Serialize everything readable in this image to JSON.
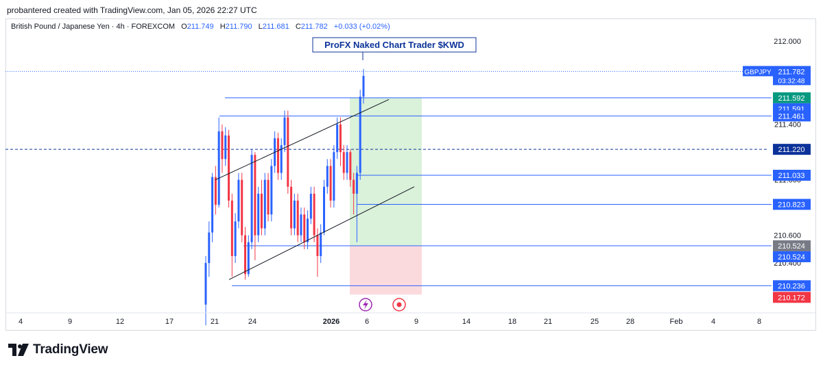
{
  "header": {
    "created_by": "probantered created with TradingView.com, Jan 05, 2026 22:27 UTC"
  },
  "legend": {
    "symbol": "British Pound / Japanese Yen · 4h · FOREXCOM",
    "o_label": "O",
    "o_value": "211.749",
    "h_label": "H",
    "h_value": "211.790",
    "l_label": "L",
    "l_value": "211.681",
    "c_label": "C",
    "c_value": "211.782",
    "change": "+0.033 (+0.02%)"
  },
  "annotation": "ProFX Naked Chart Trader $KWD",
  "brand": "TradingView",
  "colors": {
    "up": "#2962ff",
    "down": "#f23645",
    "line": "#2962ff",
    "profit_zone": "#d6f0d6",
    "loss_zone": "#fbd6da",
    "dark_badge": "#0c3299",
    "grey_badge": "#787b86",
    "green_badge": "#089981",
    "red_badge": "#f23645"
  },
  "chart_data": {
    "type": "candlestick",
    "symbol": "GBPJPY",
    "timeframe": "4h",
    "ylim": [
      210.05,
      212.1
    ],
    "y_ticks": [
      "212.000",
      "211.400",
      "211.000",
      "210.600",
      "210.400"
    ],
    "x_ticks": [
      "4",
      "9",
      "12",
      "17",
      "21",
      "24",
      "2026",
      "6",
      "9",
      "14",
      "18",
      "21",
      "25",
      "28",
      "Feb",
      "4",
      "8"
    ],
    "current_price": {
      "symbol": "GBPJPY",
      "price": "211.782",
      "countdown": "03:32:48"
    },
    "dashed_level": "211.220",
    "horizontal_levels": [
      "211.592",
      "211.591",
      "211.461",
      "211.033",
      "210.823",
      "210.524",
      "210.524",
      "210.236",
      "210.172"
    ],
    "position": {
      "entry": "210.524",
      "target": "211.592",
      "stop": "210.172"
    },
    "icons": [
      "lightning-icon",
      "target-icon"
    ],
    "channel": {
      "upper": [
        [
          211.0,
          211.58
        ]
      ],
      "lower": [
        [
          210.28,
          210.95
        ]
      ]
    },
    "candles": [
      [
        210.1,
        210.4,
        209.95,
        210.45
      ],
      [
        210.4,
        210.62,
        210.3,
        210.7
      ],
      [
        210.62,
        211.02,
        210.55,
        211.05
      ],
      [
        211.02,
        210.82,
        210.75,
        211.1
      ],
      [
        210.82,
        211.35,
        210.8,
        211.45
      ],
      [
        211.35,
        211.15,
        211.05,
        211.4
      ],
      [
        211.15,
        211.32,
        211.1,
        211.38
      ],
      [
        211.32,
        210.85,
        210.8,
        211.36
      ],
      [
        210.85,
        210.45,
        210.3,
        210.9
      ],
      [
        210.45,
        210.7,
        210.4,
        210.76
      ],
      [
        210.7,
        211.0,
        210.65,
        211.05
      ],
      [
        211.0,
        210.6,
        210.55,
        211.05
      ],
      [
        210.6,
        210.32,
        210.28,
        210.66
      ],
      [
        210.32,
        210.55,
        210.3,
        210.6
      ],
      [
        210.55,
        211.18,
        210.5,
        211.22
      ],
      [
        211.18,
        210.6,
        210.42,
        211.2
      ],
      [
        210.6,
        210.9,
        210.55,
        210.95
      ],
      [
        210.9,
        210.65,
        210.6,
        211.0
      ],
      [
        210.65,
        211.0,
        210.6,
        211.05
      ],
      [
        211.0,
        210.75,
        210.7,
        211.05
      ],
      [
        210.75,
        211.1,
        210.7,
        211.15
      ],
      [
        211.1,
        211.3,
        211.05,
        211.35
      ],
      [
        211.3,
        211.05,
        211.0,
        211.34
      ],
      [
        211.05,
        211.25,
        211.0,
        211.3
      ],
      [
        211.25,
        211.45,
        211.2,
        211.5
      ],
      [
        211.45,
        210.95,
        210.9,
        211.5
      ],
      [
        210.95,
        210.65,
        210.6,
        211.0
      ],
      [
        210.65,
        210.85,
        210.6,
        210.9
      ],
      [
        210.85,
        210.6,
        210.55,
        210.9
      ],
      [
        210.6,
        210.75,
        210.55,
        210.8
      ],
      [
        210.75,
        210.55,
        210.5,
        210.8
      ],
      [
        210.55,
        210.72,
        210.5,
        210.78
      ],
      [
        210.72,
        210.9,
        210.68,
        210.95
      ],
      [
        210.9,
        210.6,
        210.55,
        210.95
      ],
      [
        210.6,
        210.45,
        210.3,
        210.65
      ],
      [
        210.45,
        210.62,
        210.4,
        210.68
      ],
      [
        210.62,
        210.95,
        210.6,
        211.0
      ],
      [
        210.95,
        211.1,
        210.9,
        211.15
      ],
      [
        211.1,
        210.85,
        210.8,
        211.15
      ],
      [
        210.85,
        211.2,
        210.8,
        211.25
      ],
      [
        211.2,
        211.4,
        211.15,
        211.45
      ],
      [
        211.4,
        211.2,
        211.1,
        211.45
      ],
      [
        211.2,
        211.05,
        211.0,
        211.25
      ],
      [
        211.05,
        211.2,
        211.0,
        211.25
      ],
      [
        211.2,
        211.0,
        210.95,
        211.22
      ],
      [
        211.0,
        210.9,
        210.75,
        211.05
      ],
      [
        210.9,
        211.05,
        210.55,
        211.1
      ],
      [
        211.05,
        211.6,
        211.0,
        211.65
      ],
      [
        211.6,
        211.75,
        211.55,
        211.8
      ]
    ]
  }
}
